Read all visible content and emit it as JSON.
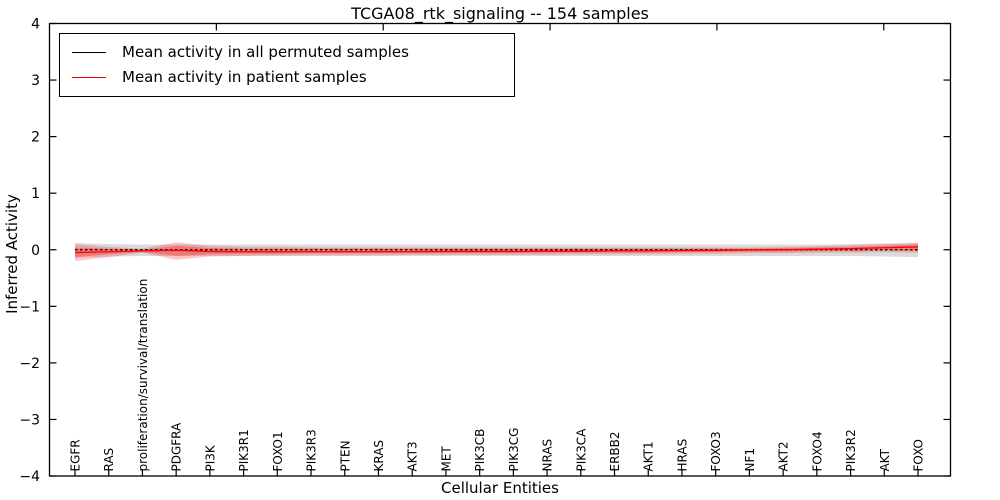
{
  "figure": {
    "title": "TCGA08_rtk_signaling -- 154 samples",
    "xlabel": "Cellular Entities",
    "ylabel": "Inferred Activity",
    "background": "#ffffff",
    "axis_color": "#000000"
  },
  "legend": {
    "position": "upper left",
    "items": [
      {
        "label": "Mean activity in all permuted samples",
        "color": "#000000"
      },
      {
        "label": "Mean activity in patient samples",
        "color": "#ff0000"
      }
    ]
  },
  "chart_data": {
    "type": "line",
    "title": "TCGA08_rtk_signaling -- 154 samples",
    "xlabel": "Cellular Entities",
    "ylabel": "Inferred Activity",
    "ylim": [
      -4,
      4
    ],
    "grid": false,
    "legend_position": "upper left",
    "yticks": {
      "values": [
        4,
        3,
        2,
        1,
        0,
        -1,
        -2,
        -3,
        -4
      ],
      "labels": [
        "4",
        "3",
        "2",
        "1",
        "0",
        "−1",
        "−2",
        "−3",
        "−4"
      ]
    },
    "categories": [
      "EGFR",
      "RAS",
      "proliferation/survival/translation",
      "PDGFRA",
      "PI3K",
      "PIK3R1",
      "FOXO1",
      "PIK3R3",
      "PTEN",
      "KRAS",
      "AKT3",
      "MET",
      "PIK3CB",
      "PIK3CG",
      "NRAS",
      "PIK3CA",
      "ERBB2",
      "AKT1",
      "HRAS",
      "FOXO3",
      "NF1",
      "AKT2",
      "FOXO4",
      "PIK3R2",
      "AKT",
      "FOXO"
    ],
    "series": [
      {
        "name": "Mean activity in all permuted samples",
        "color": "#000000",
        "style": "dashed",
        "values": [
          0,
          0,
          0,
          0,
          0,
          0,
          0,
          0,
          0,
          0,
          0,
          0,
          0,
          0,
          0,
          0,
          0,
          0,
          0,
          0,
          0,
          0,
          0,
          0,
          0,
          0
        ]
      },
      {
        "name": "Mean activity in patient samples",
        "color": "#ff0000",
        "style": "solid",
        "values": [
          -0.05,
          -0.035,
          -0.02,
          -0.01,
          -0.03,
          -0.035,
          -0.035,
          -0.035,
          -0.035,
          -0.035,
          -0.035,
          -0.03,
          -0.03,
          -0.03,
          -0.025,
          -0.025,
          -0.02,
          -0.02,
          -0.015,
          -0.01,
          -0.005,
          0.0,
          0.01,
          0.02,
          0.035,
          0.05
        ]
      }
    ],
    "bands": [
      {
        "name": "permuted-samples-std-band",
        "color": "#999999",
        "opacity": 0.35,
        "upper": [
          0.12,
          0.1,
          0.09,
          0.09,
          0.09,
          0.09,
          0.09,
          0.09,
          0.09,
          0.09,
          0.09,
          0.09,
          0.09,
          0.09,
          0.09,
          0.09,
          0.09,
          0.09,
          0.09,
          0.09,
          0.09,
          0.09,
          0.09,
          0.1,
          0.11,
          0.12
        ],
        "lower": [
          -0.14,
          -0.12,
          -0.11,
          -0.11,
          -0.11,
          -0.11,
          -0.11,
          -0.11,
          -0.11,
          -0.11,
          -0.11,
          -0.11,
          -0.11,
          -0.11,
          -0.11,
          -0.11,
          -0.11,
          -0.11,
          -0.11,
          -0.11,
          -0.11,
          -0.11,
          -0.11,
          -0.11,
          -0.12,
          -0.13
        ]
      },
      {
        "name": "patient-samples-band-outer",
        "color": "#ff0000",
        "opacity": 0.22,
        "upper": [
          0.1,
          0.05,
          0.02,
          0.13,
          0.07,
          0.05,
          0.05,
          0.04,
          0.04,
          0.04,
          0.04,
          0.04,
          0.04,
          0.04,
          0.04,
          0.04,
          0.04,
          0.04,
          0.04,
          0.04,
          0.04,
          0.05,
          0.06,
          0.08,
          0.1,
          0.12
        ],
        "lower": [
          -0.2,
          -0.13,
          -0.05,
          -0.18,
          -0.12,
          -0.11,
          -0.1,
          -0.1,
          -0.1,
          -0.1,
          -0.09,
          -0.09,
          -0.09,
          -0.09,
          -0.09,
          -0.08,
          -0.08,
          -0.08,
          -0.07,
          -0.07,
          -0.06,
          -0.06,
          -0.05,
          -0.05,
          -0.04,
          -0.05
        ]
      },
      {
        "name": "patient-samples-band-inner",
        "color": "#ff0000",
        "opacity": 0.28,
        "upper": [
          0.04,
          0.02,
          0.0,
          0.07,
          0.03,
          0.02,
          0.02,
          0.02,
          0.02,
          0.02,
          0.02,
          0.02,
          0.02,
          0.02,
          0.02,
          0.02,
          0.02,
          0.02,
          0.02,
          0.02,
          0.02,
          0.03,
          0.04,
          0.05,
          0.07,
          0.09
        ],
        "lower": [
          -0.13,
          -0.08,
          -0.04,
          -0.11,
          -0.08,
          -0.07,
          -0.07,
          -0.06,
          -0.06,
          -0.06,
          -0.06,
          -0.06,
          -0.06,
          -0.06,
          -0.05,
          -0.05,
          -0.05,
          -0.05,
          -0.04,
          -0.04,
          -0.03,
          -0.03,
          -0.02,
          -0.02,
          -0.01,
          -0.02
        ]
      }
    ]
  }
}
